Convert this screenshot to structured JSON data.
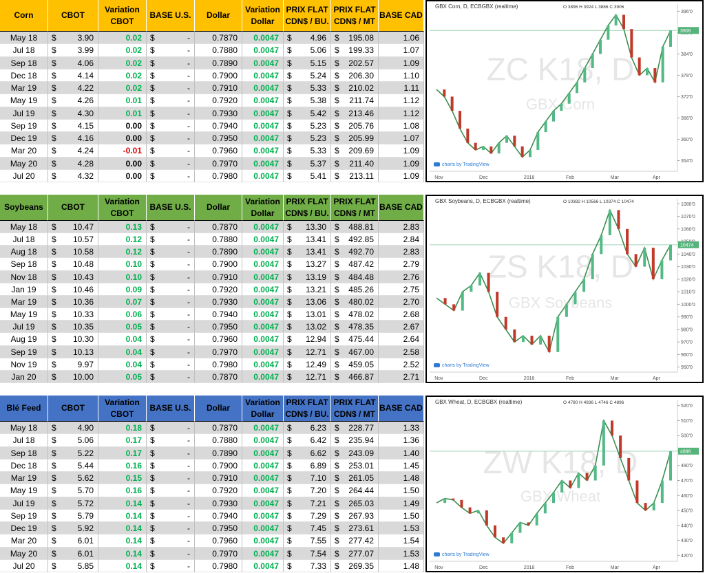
{
  "currency": "$",
  "tables": [
    {
      "color": "#ffc000",
      "header": [
        [
          "Corn"
        ],
        [
          "CBOT"
        ],
        [
          "Variation",
          "CBOT"
        ],
        [
          "BASE U.S."
        ],
        [
          "Dollar"
        ],
        [
          "Variation",
          "Dollar"
        ],
        [
          "PRIX FLAT",
          "CDN$ / BU."
        ],
        [
          "PRIX FLAT",
          "CDN$ / MT"
        ],
        [
          "BASE CAD"
        ]
      ],
      "rows": [
        [
          "May 18",
          "3.90",
          "0.02",
          "-",
          "0.7870",
          "0.0047",
          "4.96",
          "195.08",
          "1.06"
        ],
        [
          "Jul 18",
          "3.99",
          "0.02",
          "-",
          "0.7880",
          "0.0047",
          "5.06",
          "199.33",
          "1.07"
        ],
        [
          "Sep 18",
          "4.06",
          "0.02",
          "-",
          "0.7890",
          "0.0047",
          "5.15",
          "202.57",
          "1.09"
        ],
        [
          "Dec 18",
          "4.14",
          "0.02",
          "-",
          "0.7900",
          "0.0047",
          "5.24",
          "206.30",
          "1.10"
        ],
        [
          "Mar 19",
          "4.22",
          "0.02",
          "-",
          "0.7910",
          "0.0047",
          "5.33",
          "210.02",
          "1.11"
        ],
        [
          "May 19",
          "4.26",
          "0.01",
          "-",
          "0.7920",
          "0.0047",
          "5.38",
          "211.74",
          "1.12"
        ],
        [
          "Jul 19",
          "4.30",
          "0.01",
          "-",
          "0.7930",
          "0.0047",
          "5.42",
          "213.46",
          "1.12"
        ],
        [
          "Sep 19",
          "4.15",
          "0.00",
          "-",
          "0.7940",
          "0.0047",
          "5.23",
          "205.76",
          "1.08"
        ],
        [
          "Dec 19",
          "4.16",
          "0.00",
          "-",
          "0.7950",
          "0.0047",
          "5.23",
          "205.99",
          "1.07"
        ],
        [
          "Mar 20",
          "4.24",
          "-0.01",
          "-",
          "0.7960",
          "0.0047",
          "5.33",
          "209.69",
          "1.09"
        ],
        [
          "May 20",
          "4.28",
          "0.00",
          "-",
          "0.7970",
          "0.0047",
          "5.37",
          "211.40",
          "1.09"
        ],
        [
          "Jul 20",
          "4.32",
          "0.00",
          "-",
          "0.7980",
          "0.0047",
          "5.41",
          "213.11",
          "1.09"
        ]
      ],
      "chart": {
        "title": "GBX Corn, D, ECBGBX (realtime)",
        "ohlc": "O 3896 H 3924 L 3886 C 3906",
        "symbol": "ZC K18, D",
        "name": "GBX Corn",
        "credit": "charts by TradingView",
        "xlabels": [
          "Nov",
          "Dec",
          "2018",
          "Feb",
          "Mar",
          "Apr"
        ],
        "ylim": [
          351,
          398
        ],
        "yticks": [
          {
            "value": 396,
            "label": "396'0"
          },
          {
            "value": 390,
            "label": "390'0"
          },
          {
            "value": 384,
            "label": "384'0"
          },
          {
            "value": 378,
            "label": "378'0"
          },
          {
            "value": 372,
            "label": "372'0"
          },
          {
            "value": 366,
            "label": "366'0"
          },
          {
            "value": 360,
            "label": "360'0"
          },
          {
            "value": 354,
            "label": "354'0"
          }
        ],
        "closes": [
          374,
          372,
          368,
          363,
          359,
          357,
          358,
          356,
          359,
          361,
          358,
          355,
          357,
          362,
          365,
          368,
          370,
          373,
          376,
          380,
          384,
          388,
          392,
          395,
          391,
          383,
          378,
          380,
          376,
          386,
          390.6
        ],
        "last": {
          "value": 390.6,
          "label": "3906"
        }
      }
    },
    {
      "color": "#70ad47",
      "header": [
        [
          "Soybeans"
        ],
        [
          "CBOT"
        ],
        [
          "Variation",
          "CBOT"
        ],
        [
          "BASE U.S."
        ],
        [
          "Dollar"
        ],
        [
          "Variation",
          "Dollar"
        ],
        [
          "PRIX FLAT",
          "CDN$ / BU."
        ],
        [
          "PRIX FLAT",
          "CDN$ / MT"
        ],
        [
          "BASE CAD"
        ]
      ],
      "rows": [
        [
          "May 18",
          "10.47",
          "0.13",
          "-",
          "0.7870",
          "0.0047",
          "13.30",
          "488.81",
          "2.83"
        ],
        [
          "Jul 18",
          "10.57",
          "0.12",
          "-",
          "0.7880",
          "0.0047",
          "13.41",
          "492.85",
          "2.84"
        ],
        [
          "Aug 18",
          "10.58",
          "0.12",
          "-",
          "0.7890",
          "0.0047",
          "13.41",
          "492.70",
          "2.83"
        ],
        [
          "Sep 18",
          "10.48",
          "0.10",
          "-",
          "0.7900",
          "0.0047",
          "13.27",
          "487.42",
          "2.79"
        ],
        [
          "Nov 18",
          "10.43",
          "0.10",
          "-",
          "0.7910",
          "0.0047",
          "13.19",
          "484.48",
          "2.76"
        ],
        [
          "Jan 19",
          "10.46",
          "0.09",
          "-",
          "0.7920",
          "0.0047",
          "13.21",
          "485.26",
          "2.75"
        ],
        [
          "Mar 19",
          "10.36",
          "0.07",
          "-",
          "0.7930",
          "0.0047",
          "13.06",
          "480.02",
          "2.70"
        ],
        [
          "May 19",
          "10.33",
          "0.06",
          "-",
          "0.7940",
          "0.0047",
          "13.01",
          "478.02",
          "2.68"
        ],
        [
          "Jul 19",
          "10.35",
          "0.05",
          "-",
          "0.7950",
          "0.0047",
          "13.02",
          "478.35",
          "2.67"
        ],
        [
          "Aug 19",
          "10.30",
          "0.04",
          "-",
          "0.7960",
          "0.0047",
          "12.94",
          "475.44",
          "2.64"
        ],
        [
          "Sep 19",
          "10.13",
          "0.04",
          "-",
          "0.7970",
          "0.0047",
          "12.71",
          "467.00",
          "2.58"
        ],
        [
          "Nov 19",
          "9.97",
          "0.04",
          "-",
          "0.7980",
          "0.0047",
          "12.49",
          "459.05",
          "2.52"
        ],
        [
          "Jan 20",
          "10.00",
          "0.05",
          "-",
          "0.7870",
          "0.0047",
          "12.71",
          "466.87",
          "2.71"
        ]
      ],
      "chart": {
        "title": "GBX Soybeans, D, ECBGBX (realtime)",
        "ohlc": "O 10382 H 10566 L 10374 C 10474",
        "symbol": "ZS K18, D",
        "name": "GBX Soybeans",
        "credit": "charts by TradingView",
        "xlabels": [
          "Nov",
          "Dec",
          "2018",
          "Feb",
          "Mar",
          "Apr"
        ],
        "ylim": [
          946,
          1084
        ],
        "yticks": [
          {
            "value": 1080,
            "label": "1080'0"
          },
          {
            "value": 1070,
            "label": "1070'0"
          },
          {
            "value": 1060,
            "label": "1060'0"
          },
          {
            "value": 1050,
            "label": "1050'0"
          },
          {
            "value": 1040,
            "label": "1040'0"
          },
          {
            "value": 1030,
            "label": "1030'0"
          },
          {
            "value": 1020,
            "label": "1020'0"
          },
          {
            "value": 1010,
            "label": "1010'0"
          },
          {
            "value": 1000,
            "label": "1000'0"
          },
          {
            "value": 990,
            "label": "990'0"
          },
          {
            "value": 980,
            "label": "980'0"
          },
          {
            "value": 970,
            "label": "970'0"
          },
          {
            "value": 960,
            "label": "960'0"
          },
          {
            "value": 950,
            "label": "950'0"
          }
        ],
        "closes": [
          1005,
          1000,
          995,
          1010,
          1015,
          1025,
          1010,
          990,
          980,
          970,
          975,
          968,
          975,
          962,
          990,
          1000,
          1010,
          1020,
          1040,
          1055,
          1075,
          1060,
          1040,
          1030,
          1045,
          1020,
          1035,
          1047.4
        ],
        "last": {
          "value": 1047.4,
          "label": "10474"
        }
      }
    },
    {
      "color": "#4472c4",
      "header": [
        [
          "Blé Feed"
        ],
        [
          "CBOT"
        ],
        [
          "Variation",
          "CBOT"
        ],
        [
          "BASE U.S."
        ],
        [
          "Dollar"
        ],
        [
          "Variation",
          "Dollar"
        ],
        [
          "PRIX FLAT",
          "CDN$ / BU."
        ],
        [
          "PRIX FLAT",
          "CDN$ / MT"
        ],
        [
          "BASE CAD"
        ]
      ],
      "rows": [
        [
          "May 18",
          "4.90",
          "0.18",
          "-",
          "0.7870",
          "0.0047",
          "6.23",
          "228.77",
          "1.33"
        ],
        [
          "Jul 18",
          "5.06",
          "0.17",
          "-",
          "0.7880",
          "0.0047",
          "6.42",
          "235.94",
          "1.36"
        ],
        [
          "Sep 18",
          "5.22",
          "0.17",
          "-",
          "0.7890",
          "0.0047",
          "6.62",
          "243.09",
          "1.40"
        ],
        [
          "Dec 18",
          "5.44",
          "0.16",
          "-",
          "0.7900",
          "0.0047",
          "6.89",
          "253.01",
          "1.45"
        ],
        [
          "Mar 19",
          "5.62",
          "0.15",
          "-",
          "0.7910",
          "0.0047",
          "7.10",
          "261.05",
          "1.48"
        ],
        [
          "May 19",
          "5.70",
          "0.16",
          "-",
          "0.7920",
          "0.0047",
          "7.20",
          "264.44",
          "1.50"
        ],
        [
          "Jul 19",
          "5.72",
          "0.14",
          "-",
          "0.7930",
          "0.0047",
          "7.21",
          "265.03",
          "1.49"
        ],
        [
          "Sep 19",
          "5.79",
          "0.14",
          "-",
          "0.7940",
          "0.0047",
          "7.29",
          "267.93",
          "1.50"
        ],
        [
          "Dec 19",
          "5.92",
          "0.14",
          "-",
          "0.7950",
          "0.0047",
          "7.45",
          "273.61",
          "1.53"
        ],
        [
          "Mar 20",
          "6.01",
          "0.14",
          "-",
          "0.7960",
          "0.0047",
          "7.55",
          "277.42",
          "1.54"
        ],
        [
          "May 20",
          "6.01",
          "0.14",
          "-",
          "0.7970",
          "0.0047",
          "7.54",
          "277.07",
          "1.53"
        ],
        [
          "Jul 20",
          "5.85",
          "0.14",
          "-",
          "0.7980",
          "0.0047",
          "7.33",
          "269.35",
          "1.48"
        ]
      ],
      "chart": {
        "title": "GBX Wheat, D, ECBGBX (realtime)",
        "ohlc": "O 4780 H 4936 L 4746 C 4896",
        "symbol": "ZW K18, D",
        "name": "GBX Wheat",
        "credit": "charts by TradingView",
        "xlabels": [
          "Nov",
          "Dec",
          "2018",
          "Feb",
          "Mar",
          "Apr"
        ],
        "ylim": [
          416,
          524
        ],
        "yticks": [
          {
            "value": 520,
            "label": "520'0"
          },
          {
            "value": 510,
            "label": "510'0"
          },
          {
            "value": 500,
            "label": "500'0"
          },
          {
            "value": 490,
            "label": "490'0"
          },
          {
            "value": 480,
            "label": "480'0"
          },
          {
            "value": 470,
            "label": "470'0"
          },
          {
            "value": 460,
            "label": "460'0"
          },
          {
            "value": 450,
            "label": "450'0"
          },
          {
            "value": 440,
            "label": "440'0"
          },
          {
            "value": 430,
            "label": "430'0"
          },
          {
            "value": 420,
            "label": "420'0"
          }
        ],
        "closes": [
          455,
          458,
          457,
          452,
          448,
          450,
          440,
          432,
          428,
          435,
          442,
          440,
          448,
          455,
          462,
          470,
          465,
          475,
          470,
          480,
          510,
          500,
          485,
          470,
          455,
          450,
          455,
          470,
          489.6
        ],
        "last": {
          "value": 489.6,
          "label": "4896"
        }
      }
    }
  ]
}
